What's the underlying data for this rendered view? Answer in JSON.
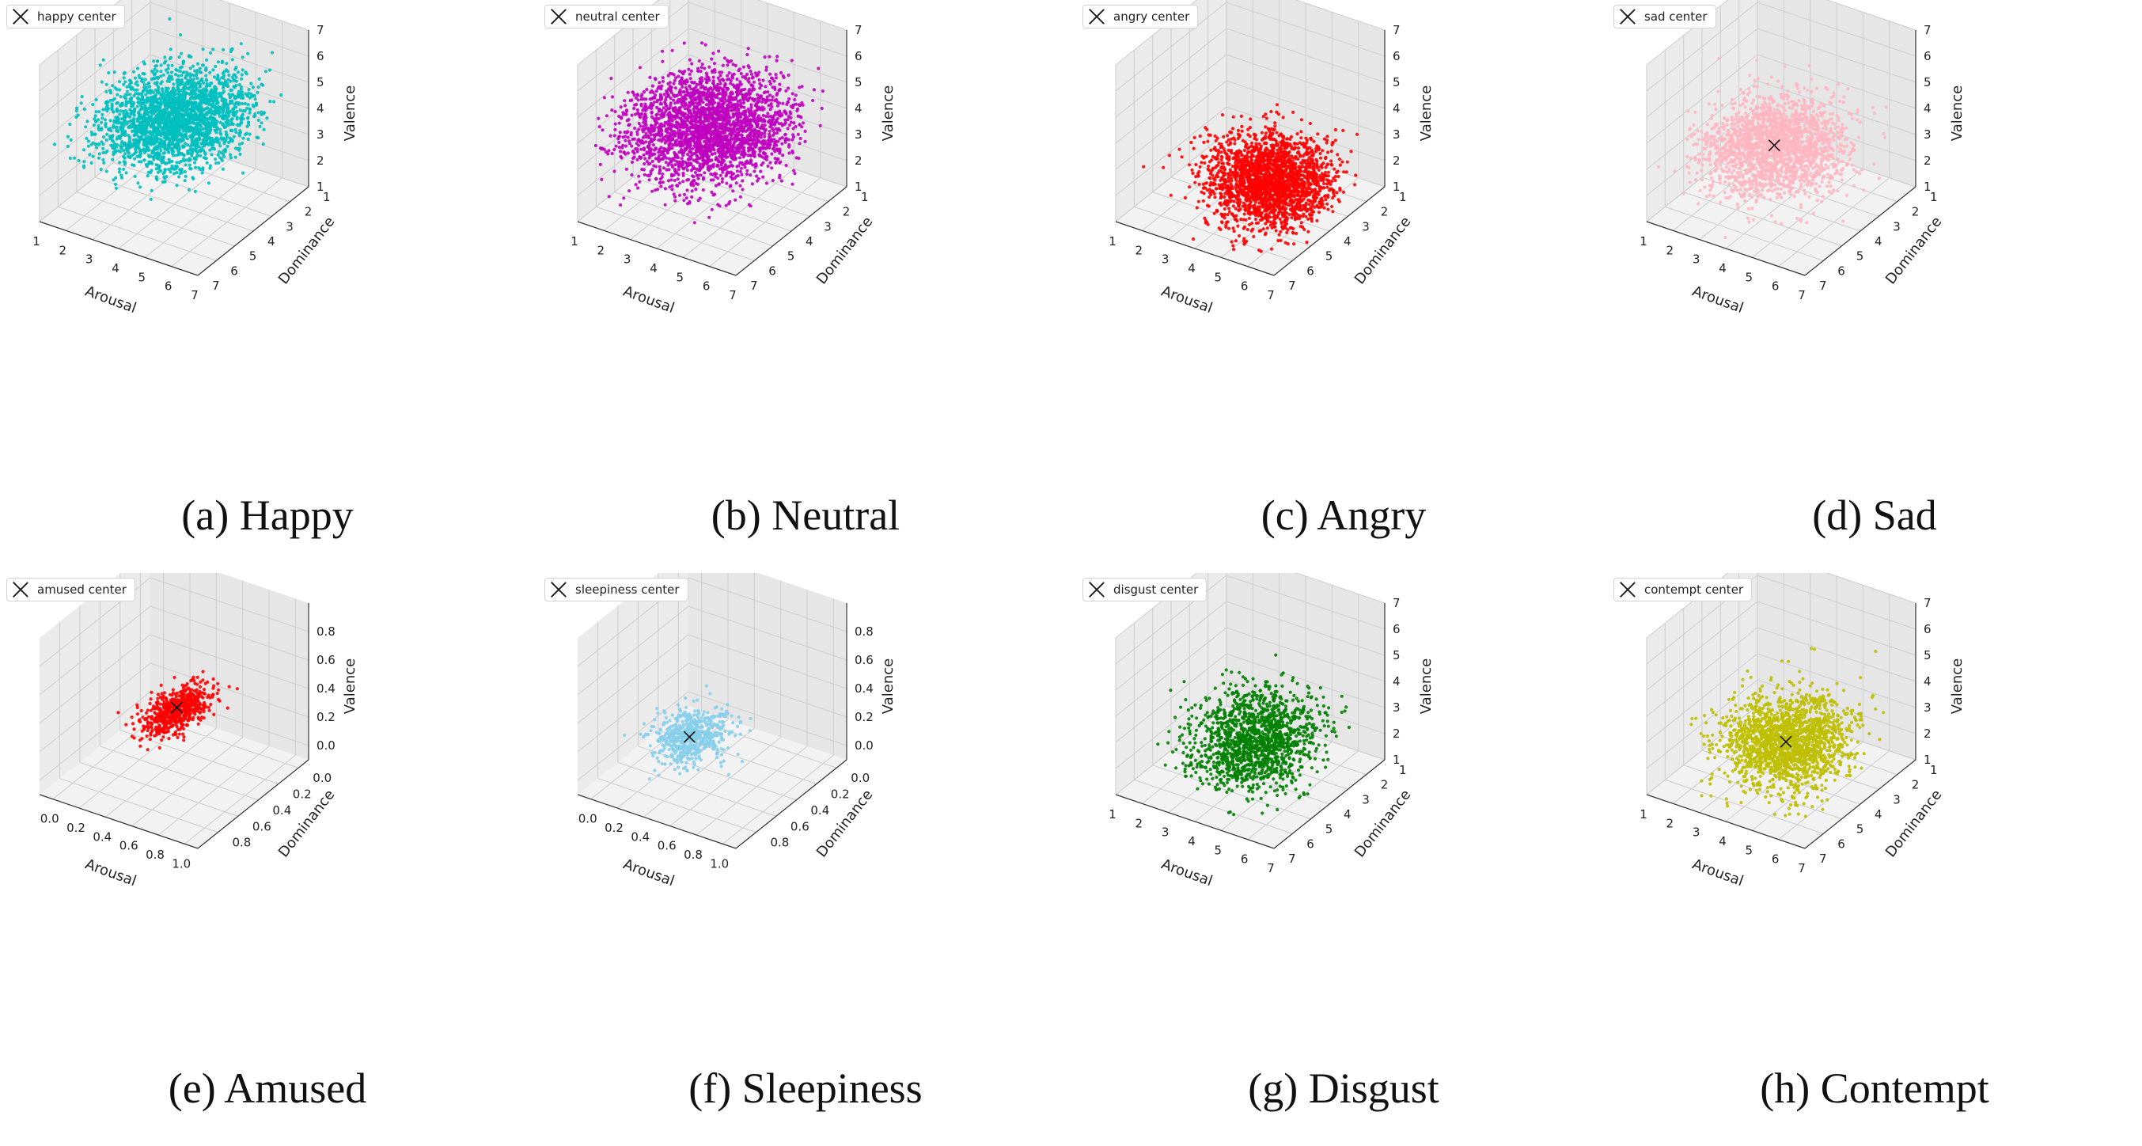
{
  "chart_data": [
    {
      "type": "scatter",
      "panel": "a",
      "caption": "(a) Happy",
      "legend": "happy center",
      "color": "#00bfbf",
      "xlabel": "Arousal",
      "ylabel": "Dominance",
      "zlabel": "Valence",
      "xticks": [
        "1",
        "2",
        "3",
        "4",
        "5",
        "6",
        "7"
      ],
      "yticks": [
        "1",
        "2",
        "3",
        "4",
        "5",
        "6",
        "7"
      ],
      "zticks": [
        "1",
        "2",
        "3",
        "4",
        "5",
        "6",
        "7"
      ],
      "xlim": [
        1,
        7
      ],
      "ylim": [
        1,
        7
      ],
      "zlim": [
        1,
        7
      ],
      "cloud": {
        "center": [
          4.5,
          4.6,
          4.7
        ],
        "spread": [
          1.3,
          1.2,
          0.75
        ],
        "count": 2600,
        "corr_xz": 0.35
      },
      "center_marker": [
        4.6,
        4.6,
        4.7
      ],
      "center_visible": false
    },
    {
      "type": "scatter",
      "panel": "b",
      "caption": "(b) Neutral",
      "legend": "neutral center",
      "color": "#bf00bf",
      "xlabel": "Arousal",
      "ylabel": "Dominance",
      "zlabel": "Valence",
      "xticks": [
        "1",
        "2",
        "3",
        "4",
        "5",
        "6",
        "7"
      ],
      "yticks": [
        "1",
        "2",
        "3",
        "4",
        "5",
        "6",
        "7"
      ],
      "zticks": [
        "1",
        "2",
        "3",
        "4",
        "5",
        "6",
        "7"
      ],
      "xlim": [
        1,
        7
      ],
      "ylim": [
        1,
        7
      ],
      "zlim": [
        1,
        7
      ],
      "cloud": {
        "center": [
          4.0,
          4.2,
          4.0
        ],
        "spread": [
          1.4,
          1.3,
          0.75
        ],
        "count": 2800,
        "corr_xz": 0.1
      },
      "center_marker": [
        4.0,
        4.2,
        4.0
      ],
      "center_visible": false
    },
    {
      "type": "scatter",
      "panel": "c",
      "caption": "(c) Angry",
      "legend": "angry center",
      "color": "#ff0000",
      "xlabel": "Arousal",
      "ylabel": "Dominance",
      "zlabel": "Valence",
      "xticks": [
        "1",
        "2",
        "3",
        "4",
        "5",
        "6",
        "7"
      ],
      "yticks": [
        "1",
        "2",
        "3",
        "4",
        "5",
        "6",
        "7"
      ],
      "zticks": [
        "1",
        "2",
        "3",
        "4",
        "5",
        "6",
        "7"
      ],
      "xlim": [
        1,
        7
      ],
      "ylim": [
        1,
        7
      ],
      "zlim": [
        1,
        7
      ],
      "cloud": {
        "center": [
          5.2,
          4.6,
          2.6
        ],
        "spread": [
          1.0,
          1.0,
          0.6
        ],
        "count": 2400,
        "corr_xz": -0.2
      },
      "center_marker": [
        5.2,
        4.6,
        2.6
      ],
      "center_visible": false
    },
    {
      "type": "scatter",
      "panel": "d",
      "caption": "(d) Sad",
      "legend": "sad center",
      "color": "#ffb6c1",
      "xlabel": "Arousal",
      "ylabel": "Dominance",
      "zlabel": "Valence",
      "xticks": [
        "1",
        "2",
        "3",
        "4",
        "5",
        "6",
        "7"
      ],
      "yticks": [
        "1",
        "2",
        "3",
        "4",
        "5",
        "6",
        "7"
      ],
      "zticks": [
        "1",
        "2",
        "3",
        "4",
        "5",
        "6",
        "7"
      ],
      "xlim": [
        1,
        7
      ],
      "ylim": [
        1,
        7
      ],
      "zlim": [
        1,
        7
      ],
      "cloud": {
        "center": [
          3.6,
          3.8,
          3.0
        ],
        "spread": [
          1.2,
          1.1,
          0.7
        ],
        "count": 2000,
        "corr_xz": 0.1
      },
      "center_marker": [
        3.6,
        3.8,
        3.0
      ],
      "center_visible": true
    },
    {
      "type": "scatter",
      "panel": "e",
      "caption": "(e) Amused",
      "legend": "amused center",
      "color": "#ff0000",
      "xlabel": "Arousal",
      "ylabel": "Dominance",
      "zlabel": "Valence",
      "xticks": [
        "0.0",
        "0.2",
        "0.4",
        "0.6",
        "0.8",
        "1.0"
      ],
      "yticks": [
        "0.0",
        "0.2",
        "0.4",
        "0.6",
        "0.8"
      ],
      "zticks": [
        "0.0",
        "0.2",
        "0.4",
        "0.6",
        "0.8"
      ],
      "xlim": [
        -0.1,
        1.1
      ],
      "ylim": [
        -0.1,
        1.0
      ],
      "zlim": [
        -0.1,
        1.0
      ],
      "cloud": {
        "center": [
          0.62,
          0.58,
          0.48
        ],
        "spread": [
          0.1,
          0.1,
          0.08
        ],
        "count": 650,
        "corr_xz": 0.55
      },
      "center_marker": [
        0.62,
        0.58,
        0.5
      ],
      "center_visible": true
    },
    {
      "type": "scatter",
      "panel": "f",
      "caption": "(f) Sleepiness",
      "legend": "sleepiness center",
      "color": "#87ceeb",
      "xlabel": "Arousal",
      "ylabel": "Dominance",
      "zlabel": "Valence",
      "xticks": [
        "0.0",
        "0.2",
        "0.4",
        "0.6",
        "0.8",
        "1.0"
      ],
      "yticks": [
        "0.0",
        "0.2",
        "0.4",
        "0.6",
        "0.8"
      ],
      "zticks": [
        "0.0",
        "0.2",
        "0.4",
        "0.6",
        "0.8"
      ],
      "xlim": [
        -0.1,
        1.1
      ],
      "ylim": [
        -0.1,
        1.0
      ],
      "zlim": [
        -0.1,
        1.0
      ],
      "cloud": {
        "center": [
          0.32,
          0.44,
          0.12
        ],
        "spread": [
          0.12,
          0.11,
          0.08
        ],
        "count": 600,
        "corr_xz": 0.2
      },
      "center_marker": [
        0.32,
        0.44,
        0.12
      ],
      "center_visible": true
    },
    {
      "type": "scatter",
      "panel": "g",
      "caption": "(g) Disgust",
      "legend": "disgust center",
      "color": "#008000",
      "xlabel": "Arousal",
      "ylabel": "Dominance",
      "zlabel": "Valence",
      "xticks": [
        "1",
        "2",
        "3",
        "4",
        "5",
        "6",
        "7"
      ],
      "yticks": [
        "1",
        "2",
        "3",
        "4",
        "5",
        "6",
        "7"
      ],
      "zticks": [
        "1",
        "2",
        "3",
        "4",
        "5",
        "6",
        "7"
      ],
      "xlim": [
        1,
        7
      ],
      "ylim": [
        1,
        7
      ],
      "zlim": [
        1,
        7
      ],
      "cloud": {
        "center": [
          4.6,
          4.6,
          2.9
        ],
        "spread": [
          1.0,
          1.0,
          0.8
        ],
        "count": 1500,
        "corr_xz": 0.1
      },
      "center_marker": [
        4.6,
        4.6,
        2.9
      ],
      "center_visible": false
    },
    {
      "type": "scatter",
      "panel": "h",
      "caption": "(h) Contempt",
      "legend": "contempt center",
      "color": "#bfbf00",
      "xlabel": "Arousal",
      "ylabel": "Dominance",
      "zlabel": "Valence",
      "xticks": [
        "1",
        "2",
        "3",
        "4",
        "5",
        "6",
        "7"
      ],
      "yticks": [
        "1",
        "2",
        "3",
        "4",
        "5",
        "6",
        "7"
      ],
      "zticks": [
        "1",
        "2",
        "3",
        "4",
        "5",
        "6",
        "7"
      ],
      "xlim": [
        1,
        7
      ],
      "ylim": [
        1,
        7
      ],
      "zlim": [
        1,
        7
      ],
      "cloud": {
        "center": [
          4.6,
          4.6,
          2.9
        ],
        "spread": [
          1.1,
          1.0,
          0.75
        ],
        "count": 1800,
        "corr_xz": 0.15
      },
      "center_marker": [
        4.6,
        4.6,
        2.9
      ],
      "center_visible": true
    }
  ]
}
